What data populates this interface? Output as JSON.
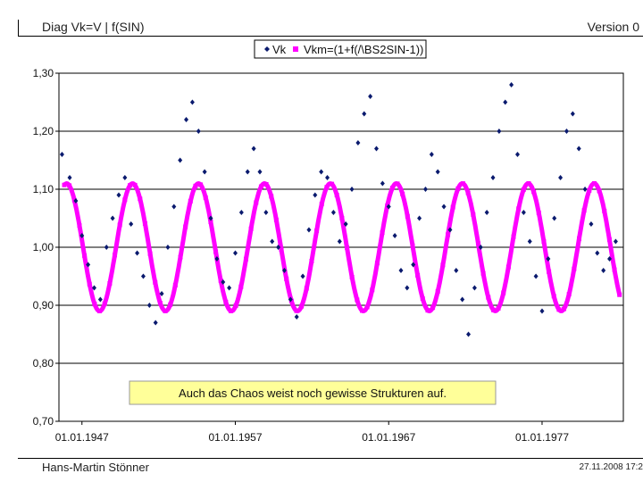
{
  "header": {
    "title": "Diag Vk=V | f(SIN)",
    "version": "Version 0"
  },
  "footer": {
    "author": "Hans-Martin Stönner",
    "date": "27.11.2008 17:2"
  },
  "colors": {
    "vk": "#0a1a6e",
    "vkm": "#ff00ff",
    "annotation_fill": "#ffff99",
    "annotation_border": "#999999"
  },
  "chart_data": {
    "type": "scatter",
    "legend": [
      "Vk",
      "Vkm=(1+f(/\\BS2SIN-1))"
    ],
    "legend_position": "top-center",
    "x_tick_labels": [
      "01.01.1947",
      "01.01.1957",
      "01.01.1967",
      "01.01.1977"
    ],
    "x_ticks": [
      1947,
      1957,
      1967,
      1977
    ],
    "xlim": [
      1945.5,
      1982.3
    ],
    "y_tick_labels": [
      "0,70",
      "0,80",
      "0,90",
      "1,00",
      "1,10",
      "1,20",
      "1,30"
    ],
    "ylim": [
      0.7,
      1.3
    ],
    "grid": "horizontal",
    "annotation": "Auch das Chaos weist noch gewisse Strukturen auf.",
    "series": [
      {
        "name": "Vkm=(1+f(/\\BS2SIN-1))",
        "marker": "square",
        "sine": {
          "center": 1.0,
          "amplitude": 0.11,
          "period_years": 4.3,
          "peak_years": [
            1946.0,
            1950.3,
            1954.6,
            1958.9,
            1963.2,
            1967.5,
            1971.8,
            1976.1,
            1980.4
          ]
        }
      },
      {
        "name": "Vk",
        "marker": "diamond",
        "x": [
          1945.7,
          1946.2,
          1946.6,
          1947.0,
          1947.4,
          1947.8,
          1948.2,
          1948.6,
          1949.0,
          1949.4,
          1949.8,
          1950.2,
          1950.6,
          1951.0,
          1951.4,
          1951.8,
          1952.2,
          1952.6,
          1953.0,
          1953.4,
          1953.8,
          1954.2,
          1954.6,
          1955.0,
          1955.4,
          1955.8,
          1956.2,
          1956.6,
          1957.0,
          1957.4,
          1957.8,
          1958.2,
          1958.6,
          1959.0,
          1959.4,
          1959.8,
          1960.2,
          1960.6,
          1961.0,
          1961.4,
          1961.8,
          1962.2,
          1962.6,
          1963.0,
          1963.4,
          1963.8,
          1964.2,
          1964.6,
          1965.0,
          1965.4,
          1965.8,
          1966.2,
          1966.6,
          1967.0,
          1967.4,
          1967.8,
          1968.2,
          1968.6,
          1969.0,
          1969.4,
          1969.8,
          1970.2,
          1970.6,
          1971.0,
          1971.4,
          1971.8,
          1972.2,
          1972.6,
          1973.0,
          1973.4,
          1973.8,
          1974.2,
          1974.6,
          1975.0,
          1975.4,
          1975.8,
          1976.2,
          1976.6,
          1977.0,
          1977.4,
          1977.8,
          1978.2,
          1978.6,
          1979.0,
          1979.4,
          1979.8,
          1980.2,
          1980.6,
          1981.0,
          1981.4,
          1981.8
        ],
        "values": [
          1.16,
          1.12,
          1.08,
          1.02,
          0.97,
          0.93,
          0.91,
          1.0,
          1.05,
          1.09,
          1.12,
          1.04,
          0.99,
          0.95,
          0.9,
          0.87,
          0.92,
          1.0,
          1.07,
          1.15,
          1.22,
          1.25,
          1.2,
          1.13,
          1.05,
          0.98,
          0.94,
          0.93,
          0.99,
          1.06,
          1.13,
          1.17,
          1.13,
          1.06,
          1.01,
          1.0,
          0.96,
          0.91,
          0.88,
          0.95,
          1.03,
          1.09,
          1.13,
          1.12,
          1.06,
          1.01,
          1.04,
          1.1,
          1.18,
          1.23,
          1.26,
          1.17,
          1.11,
          1.07,
          1.02,
          0.96,
          0.93,
          0.97,
          1.05,
          1.1,
          1.16,
          1.13,
          1.07,
          1.03,
          0.96,
          0.91,
          0.85,
          0.93,
          1.0,
          1.06,
          1.12,
          1.2,
          1.25,
          1.28,
          1.16,
          1.06,
          1.01,
          0.95,
          0.89,
          0.98,
          1.05,
          1.12,
          1.2,
          1.23,
          1.17,
          1.1,
          1.04,
          0.99,
          0.96,
          0.98,
          1.01
        ]
      }
    ]
  }
}
